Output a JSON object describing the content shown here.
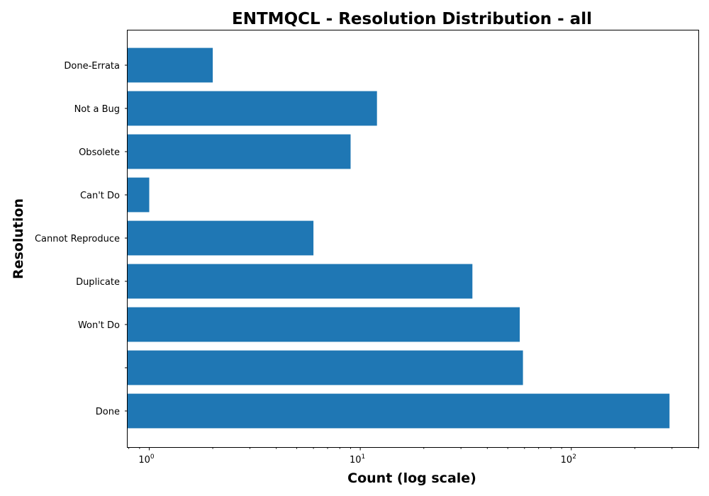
{
  "chart_data": {
    "type": "bar",
    "orientation": "horizontal",
    "title": "ENTMQCL - Resolution Distribution - all",
    "xlabel": "Count (log scale)",
    "ylabel": "Resolution",
    "x_scale": "log",
    "xlim": [
      0.79,
      400
    ],
    "x_major_ticks": [
      1,
      10,
      100
    ],
    "categories": [
      "Done",
      "",
      "Won't Do",
      "Duplicate",
      "Cannot Reproduce",
      "Can't Do",
      "Obsolete",
      "Not a Bug",
      "Done-Errata"
    ],
    "values": [
      292,
      59,
      57,
      34,
      6,
      1,
      9,
      12,
      2
    ],
    "bar_color": "#1f77b4",
    "grid": false,
    "legend": "none"
  }
}
